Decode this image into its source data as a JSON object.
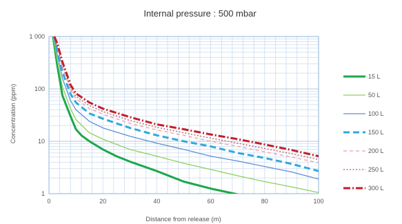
{
  "chart_data": {
    "type": "line",
    "title": "Internal pressure : 500 mbar",
    "xlabel": "Distance from release (m)",
    "ylabel": "Concentration (ppm)",
    "x_scale": "linear",
    "y_scale": "log",
    "xlim": [
      0,
      100
    ],
    "ylim": [
      1,
      1000
    ],
    "x_ticks": [
      "0",
      "20",
      "40",
      "60",
      "80",
      "100"
    ],
    "y_ticks": [
      "1",
      "10",
      "100",
      "1 000"
    ],
    "grid": true,
    "legend_position": "right",
    "series": [
      {
        "name": "15 L",
        "color": "#1aa84a",
        "dash": "solid",
        "width": "heavy",
        "points": [
          [
            1.5,
            1000
          ],
          [
            3,
            300
          ],
          [
            5,
            75
          ],
          [
            8,
            30
          ],
          [
            10,
            17
          ],
          [
            12,
            13
          ],
          [
            15,
            10
          ],
          [
            20,
            7
          ],
          [
            25,
            5.2
          ],
          [
            30,
            4.1
          ],
          [
            40,
            2.7
          ],
          [
            50,
            1.7
          ],
          [
            60,
            1.25
          ],
          [
            70,
            0.97
          ]
        ]
      },
      {
        "name": "50 L",
        "color": "#8ccf5c",
        "dash": "solid",
        "width": "thin",
        "points": [
          [
            1.5,
            1000
          ],
          [
            3,
            380
          ],
          [
            5,
            110
          ],
          [
            8,
            42
          ],
          [
            10,
            26
          ],
          [
            15,
            14.5
          ],
          [
            20,
            11
          ],
          [
            30,
            7
          ],
          [
            40,
            5.2
          ],
          [
            50,
            3.8
          ],
          [
            60,
            2.9
          ],
          [
            70,
            2.2
          ],
          [
            80,
            1.7
          ],
          [
            90,
            1.35
          ],
          [
            100,
            1.05
          ]
        ]
      },
      {
        "name": "100 L",
        "color": "#5b8fd6",
        "dash": "solid",
        "width": "thin",
        "points": [
          [
            2,
            1000
          ],
          [
            3,
            480
          ],
          [
            5,
            160
          ],
          [
            8,
            60
          ],
          [
            10,
            40
          ],
          [
            15,
            24
          ],
          [
            20,
            18
          ],
          [
            30,
            12.5
          ],
          [
            40,
            9.2
          ],
          [
            50,
            7
          ],
          [
            60,
            5.2
          ],
          [
            70,
            4.2
          ],
          [
            80,
            3.3
          ],
          [
            90,
            2.6
          ],
          [
            100,
            1.9
          ]
        ]
      },
      {
        "name": "150 L",
        "color": "#2fa8e0",
        "dash": "longdash",
        "width": "heavy",
        "points": [
          [
            2,
            1000
          ],
          [
            3,
            560
          ],
          [
            5,
            210
          ],
          [
            8,
            80
          ],
          [
            10,
            55
          ],
          [
            15,
            34
          ],
          [
            20,
            27
          ],
          [
            30,
            18
          ],
          [
            40,
            13
          ],
          [
            50,
            10
          ],
          [
            60,
            8
          ],
          [
            70,
            6
          ],
          [
            80,
            4.8
          ],
          [
            90,
            3.7
          ],
          [
            100,
            2.7
          ]
        ]
      },
      {
        "name": "200 L",
        "color": "#e6a0a4",
        "dash": "dash",
        "width": "thin",
        "points": [
          [
            2,
            1000
          ],
          [
            3,
            650
          ],
          [
            5,
            260
          ],
          [
            8,
            95
          ],
          [
            10,
            65
          ],
          [
            15,
            42
          ],
          [
            20,
            33
          ],
          [
            30,
            22
          ],
          [
            40,
            16.5
          ],
          [
            50,
            13
          ],
          [
            60,
            10
          ],
          [
            70,
            8
          ],
          [
            80,
            6.3
          ],
          [
            90,
            5
          ],
          [
            100,
            3.9
          ]
        ]
      },
      {
        "name": "250 L",
        "color": "#c0505a",
        "dash": "dot",
        "width": "thin",
        "points": [
          [
            2,
            1000
          ],
          [
            3,
            700
          ],
          [
            5,
            290
          ],
          [
            8,
            105
          ],
          [
            10,
            72
          ],
          [
            15,
            48
          ],
          [
            20,
            37
          ],
          [
            30,
            25
          ],
          [
            40,
            18.5
          ],
          [
            50,
            14.5
          ],
          [
            60,
            11.5
          ],
          [
            70,
            9.2
          ],
          [
            80,
            7.3
          ],
          [
            90,
            5.8
          ],
          [
            100,
            4.5
          ]
        ]
      },
      {
        "name": "300 L",
        "color": "#c41e2a",
        "dash": "dashdot",
        "width": "heavy",
        "points": [
          [
            2,
            1000
          ],
          [
            3,
            760
          ],
          [
            5,
            330
          ],
          [
            8,
            120
          ],
          [
            10,
            82
          ],
          [
            15,
            55
          ],
          [
            20,
            42
          ],
          [
            30,
            29
          ],
          [
            40,
            21
          ],
          [
            50,
            17
          ],
          [
            60,
            13.5
          ],
          [
            70,
            11
          ],
          [
            80,
            8.7
          ],
          [
            90,
            6.8
          ],
          [
            100,
            5.2
          ]
        ]
      }
    ]
  }
}
